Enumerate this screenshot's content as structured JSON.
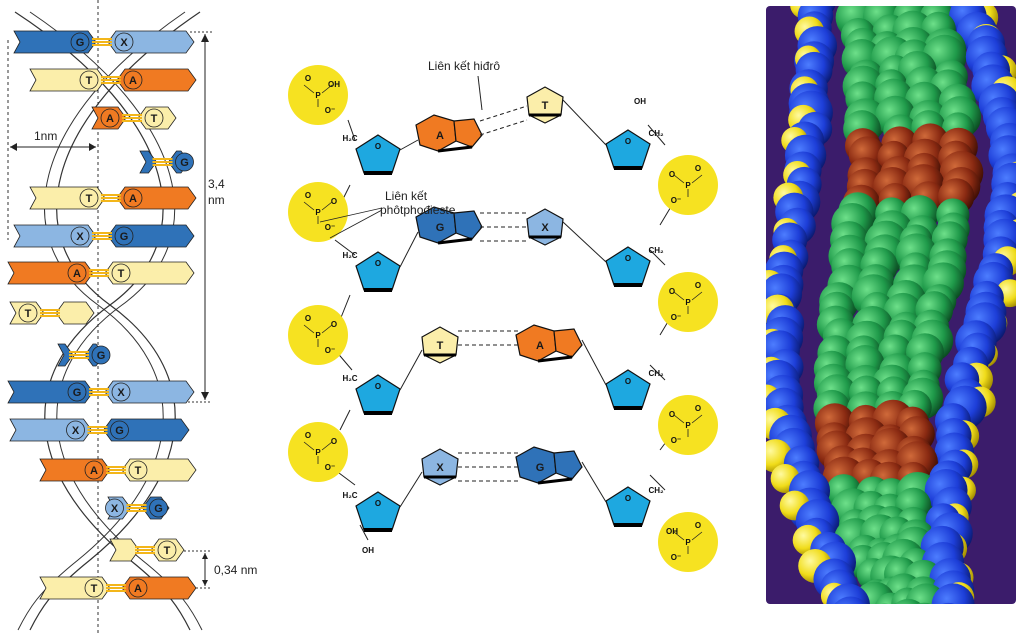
{
  "labels": {
    "width": "1nm",
    "pitch_top": "3,4",
    "pitch_bottom": "nm",
    "rise": "0,34 nm",
    "hydrogen_bond": "Liên kết hiđrô",
    "phospho_line1": "Liên kết",
    "phospho_line2": "phôtphođieste"
  },
  "helix_pairs": [
    {
      "left": "G",
      "right": "X"
    },
    {
      "left": "T",
      "right": "A"
    },
    {
      "left": "A",
      "right": "T"
    },
    {
      "left": "",
      "right": "G"
    },
    {
      "left": "T",
      "right": "A"
    },
    {
      "left": "X",
      "right": "G"
    },
    {
      "left": "A",
      "right": "T"
    },
    {
      "left": "T",
      "right": ""
    },
    {
      "left": "",
      "right": "G"
    },
    {
      "left": "G",
      "right": "X"
    },
    {
      "left": "X",
      "right": "G"
    },
    {
      "left": "A",
      "right": "T"
    },
    {
      "left": "X",
      "right": "G"
    },
    {
      "left": "",
      "right": "T"
    },
    {
      "left": "T",
      "right": "A"
    }
  ],
  "chemistry": {
    "phosphate_left": {
      "P": "P",
      "O": "O",
      "OH": "OH",
      "Ominus": "O⁻"
    },
    "ch2": "H₂C",
    "ch2_right": "CH₂",
    "oh": "OH",
    "ring_o": "O",
    "rungs": [
      {
        "left": "A",
        "right": "T"
      },
      {
        "left": "G",
        "right": "X"
      },
      {
        "left": "T",
        "right": "A"
      },
      {
        "left": "X",
        "right": "G"
      }
    ]
  },
  "colors": {
    "adenine": "#f07a22",
    "thymine": "#fbeeaa",
    "guanine": "#2f72b8",
    "cytosine": "#8cb6e2",
    "sugar": "#1ea8e0",
    "phosphate": "#f6e221",
    "hbond": "#f3b61a",
    "model_bg": "#3b1c6b"
  }
}
